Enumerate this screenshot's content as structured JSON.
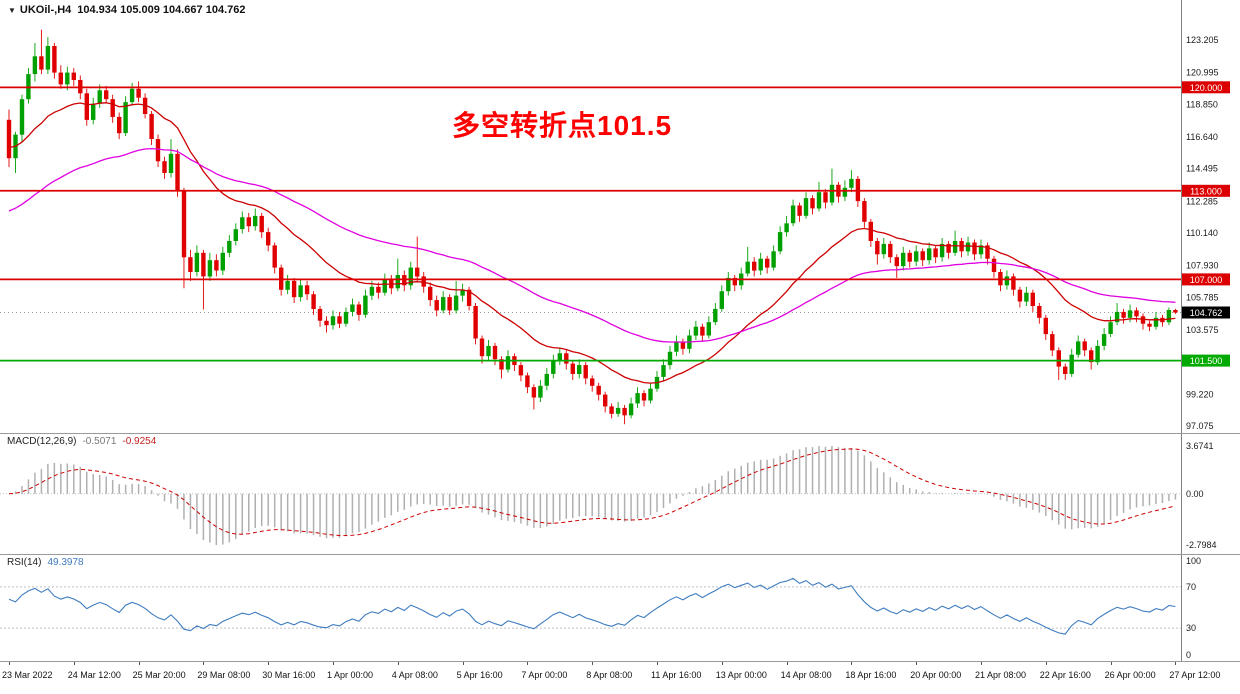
{
  "header": {
    "dropdown_icon": "▼",
    "symbol": "UKOil-,H4",
    "ohlc": "104.934 105.009 104.667 104.762"
  },
  "annotation": {
    "text": "多空转折点101.5",
    "color": "#ff0000"
  },
  "colors": {
    "bull": "#00a000",
    "bear": "#e00000",
    "ma_fast": "#cc0000",
    "ma_slow": "#e000e0",
    "hline_red": "#dd0000",
    "hline_green": "#00aa00",
    "macd_hist": "#b0b0b0",
    "macd_signal": "#cc0000",
    "rsi_line": "#3f7cbf",
    "axis_text": "#1a1a1a",
    "badge_current_bg": "#000000",
    "grid_dotted": "#c0c0c0",
    "current_line": "#999999",
    "separator": "#808080"
  },
  "chart_data": {
    "type": "candlestick",
    "symbol": "UKOil-",
    "timeframe": "H4",
    "ohlc_current": {
      "open": 104.934,
      "high": 105.009,
      "low": 104.667,
      "close": 104.762
    },
    "y_axis_labels": [
      "123.205",
      "120.995",
      "118.850",
      "116.640",
      "114.495",
      "112.285",
      "110.140",
      "107.930",
      "105.785",
      "103.575",
      "99.220",
      "97.075"
    ],
    "x_labels": [
      "23 Mar 2022",
      "24 Mar 12:00",
      "25 Mar 20:00",
      "29 Mar 08:00",
      "30 Mar 16:00",
      "1 Apr 00:00",
      "4 Apr 08:00",
      "5 Apr 16:00",
      "7 Apr 00:00",
      "8 Apr 08:00",
      "11 Apr 16:00",
      "13 Apr 00:00",
      "14 Apr 08:00",
      "18 Apr 16:00",
      "20 Apr 00:00",
      "21 Apr 08:00",
      "22 Apr 16:00",
      "26 Apr 00:00",
      "27 Apr 12:00"
    ],
    "hlines": [
      {
        "price": 120.0,
        "label": "120.000",
        "color": "#dd0000"
      },
      {
        "price": 113.0,
        "label": "113.000",
        "color": "#dd0000"
      },
      {
        "price": 107.0,
        "label": "107.000",
        "color": "#dd0000"
      },
      {
        "price": 101.5,
        "label": "101.500",
        "color": "#00aa00"
      }
    ],
    "current_price": {
      "value": 104.762,
      "label": "104.762"
    },
    "moving_averages": [
      {
        "period": 21,
        "color": "#cc0000",
        "seed": 116.0
      },
      {
        "period": 55,
        "color": "#e000e0",
        "seed": 111.5
      }
    ],
    "macd": {
      "label": "MACD(12,26,9)",
      "fast": 12,
      "slow": 26,
      "signal": 9,
      "value_main": "-0.5071",
      "value_signal": "-0.9254",
      "axis_labels": [
        "3.6741",
        "0.00",
        "-2.7984"
      ]
    },
    "rsi": {
      "label": "RSI(14)",
      "period": 14,
      "value": "49.3978",
      "levels": [
        70,
        30
      ],
      "axis_labels": [
        "100",
        "70",
        "30",
        "0"
      ]
    },
    "candles": [
      [
        117.8,
        118.5,
        114.6,
        115.2
      ],
      [
        115.2,
        117.0,
        114.2,
        116.8
      ],
      [
        116.8,
        119.5,
        116.3,
        119.2
      ],
      [
        119.2,
        121.3,
        118.9,
        120.9
      ],
      [
        120.9,
        123.0,
        120.4,
        122.1
      ],
      [
        122.1,
        123.9,
        120.9,
        121.2
      ],
      [
        121.2,
        123.4,
        120.9,
        122.8
      ],
      [
        122.8,
        123.0,
        120.6,
        121.0
      ],
      [
        121.0,
        121.5,
        119.9,
        120.2
      ],
      [
        120.2,
        121.4,
        119.8,
        121.0
      ],
      [
        121.0,
        121.3,
        120.1,
        120.5
      ],
      [
        120.5,
        120.8,
        119.2,
        119.6
      ],
      [
        119.6,
        119.9,
        117.4,
        117.8
      ],
      [
        117.8,
        119.3,
        117.5,
        118.9
      ],
      [
        118.9,
        120.2,
        118.6,
        119.8
      ],
      [
        119.8,
        120.1,
        118.9,
        119.2
      ],
      [
        119.2,
        119.5,
        117.6,
        118.0
      ],
      [
        118.0,
        118.3,
        116.5,
        116.9
      ],
      [
        116.9,
        119.4,
        116.7,
        119.0
      ],
      [
        119.0,
        120.3,
        118.8,
        119.9
      ],
      [
        119.9,
        120.4,
        119.0,
        119.3
      ],
      [
        119.3,
        119.6,
        117.9,
        118.2
      ],
      [
        118.2,
        118.4,
        116.1,
        116.5
      ],
      [
        116.5,
        116.8,
        114.6,
        115.0
      ],
      [
        115.0,
        115.3,
        113.8,
        114.2
      ],
      [
        114.2,
        116.5,
        113.9,
        115.5
      ],
      [
        115.5,
        115.8,
        112.6,
        113.0
      ],
      [
        113.0,
        113.2,
        106.4,
        108.5
      ],
      [
        108.5,
        109.0,
        106.9,
        107.5
      ],
      [
        107.5,
        109.3,
        107.2,
        108.8
      ],
      [
        108.8,
        109.0,
        104.96,
        107.2
      ],
      [
        107.2,
        108.8,
        106.9,
        108.3
      ],
      [
        108.3,
        108.7,
        107.2,
        107.6
      ],
      [
        107.6,
        109.2,
        107.3,
        108.8
      ],
      [
        108.8,
        110.0,
        108.5,
        109.6
      ],
      [
        109.6,
        110.8,
        109.3,
        110.4
      ],
      [
        110.4,
        111.6,
        110.1,
        111.2
      ],
      [
        111.2,
        111.5,
        110.2,
        110.6
      ],
      [
        110.6,
        111.8,
        110.3,
        111.3
      ],
      [
        111.3,
        111.5,
        109.8,
        110.2
      ],
      [
        110.2,
        110.5,
        108.9,
        109.3
      ],
      [
        109.3,
        109.5,
        107.4,
        107.8
      ],
      [
        107.8,
        108.0,
        105.9,
        106.3
      ],
      [
        106.3,
        107.3,
        106.0,
        106.9
      ],
      [
        106.9,
        107.1,
        105.4,
        105.8
      ],
      [
        105.8,
        107.0,
        105.5,
        106.6
      ],
      [
        106.6,
        106.9,
        105.6,
        106.0
      ],
      [
        106.0,
        106.2,
        104.6,
        105.0
      ],
      [
        105.0,
        105.2,
        103.8,
        104.2
      ],
      [
        104.2,
        104.5,
        103.4,
        103.9
      ],
      [
        103.9,
        104.9,
        103.6,
        104.5
      ],
      [
        104.5,
        104.8,
        103.7,
        104.0
      ],
      [
        104.0,
        105.1,
        103.8,
        104.8
      ],
      [
        104.8,
        105.7,
        104.5,
        105.3
      ],
      [
        105.3,
        105.5,
        104.2,
        104.6
      ],
      [
        104.6,
        106.3,
        104.4,
        105.9
      ],
      [
        105.9,
        106.9,
        105.6,
        106.5
      ],
      [
        106.5,
        106.8,
        105.7,
        106.1
      ],
      [
        106.1,
        107.4,
        105.9,
        107.0
      ],
      [
        107.0,
        107.3,
        106.0,
        106.4
      ],
      [
        106.4,
        108.4,
        106.2,
        107.3
      ],
      [
        107.3,
        107.6,
        106.2,
        106.6
      ],
      [
        106.6,
        108.2,
        106.3,
        107.8
      ],
      [
        107.8,
        109.9,
        106.9,
        107.2
      ],
      [
        107.2,
        107.5,
        106.1,
        106.5
      ],
      [
        106.5,
        106.8,
        105.2,
        105.6
      ],
      [
        105.6,
        105.9,
        104.5,
        104.9
      ],
      [
        104.9,
        106.2,
        104.7,
        105.8
      ],
      [
        105.8,
        106.0,
        104.6,
        104.9
      ],
      [
        104.9,
        106.9,
        104.7,
        105.9
      ],
      [
        105.9,
        106.7,
        105.5,
        106.3
      ],
      [
        106.3,
        106.5,
        104.9,
        105.2
      ],
      [
        105.2,
        105.4,
        102.6,
        103.0
      ],
      [
        103.0,
        103.2,
        101.3,
        101.8
      ],
      [
        101.8,
        102.9,
        101.5,
        102.5
      ],
      [
        102.5,
        102.7,
        101.2,
        101.6
      ],
      [
        101.6,
        101.8,
        100.3,
        100.9
      ],
      [
        100.9,
        102.2,
        100.7,
        101.8
      ],
      [
        101.8,
        102.0,
        100.8,
        101.2
      ],
      [
        101.2,
        101.4,
        100.1,
        100.5
      ],
      [
        100.5,
        100.7,
        99.3,
        99.7
      ],
      [
        99.7,
        99.9,
        98.2,
        99.0
      ],
      [
        99.0,
        100.2,
        98.7,
        99.8
      ],
      [
        99.8,
        101.0,
        99.5,
        100.6
      ],
      [
        100.6,
        101.9,
        100.3,
        101.5
      ],
      [
        101.5,
        102.4,
        101.2,
        102.0
      ],
      [
        102.0,
        102.2,
        100.9,
        101.3
      ],
      [
        101.3,
        101.5,
        100.2,
        100.6
      ],
      [
        100.6,
        101.6,
        100.3,
        101.2
      ],
      [
        101.2,
        101.4,
        99.9,
        100.3
      ],
      [
        100.3,
        100.5,
        99.4,
        99.8
      ],
      [
        99.8,
        100.0,
        98.8,
        99.2
      ],
      [
        99.2,
        99.4,
        98.0,
        98.4
      ],
      [
        98.4,
        98.6,
        97.6,
        97.9
      ],
      [
        97.9,
        98.7,
        97.7,
        98.3
      ],
      [
        98.3,
        98.5,
        97.2,
        97.8
      ],
      [
        97.8,
        99.0,
        97.6,
        98.6
      ],
      [
        98.6,
        99.7,
        98.3,
        99.3
      ],
      [
        99.3,
        99.5,
        98.4,
        98.8
      ],
      [
        98.8,
        100.0,
        98.6,
        99.6
      ],
      [
        99.6,
        100.8,
        99.4,
        100.4
      ],
      [
        100.4,
        101.6,
        100.1,
        101.2
      ],
      [
        101.2,
        102.5,
        100.9,
        102.1
      ],
      [
        102.1,
        103.2,
        101.8,
        102.8
      ],
      [
        102.8,
        103.0,
        101.9,
        102.3
      ],
      [
        102.3,
        103.6,
        102.0,
        103.2
      ],
      [
        103.2,
        104.2,
        102.9,
        103.8
      ],
      [
        103.8,
        104.0,
        102.8,
        103.2
      ],
      [
        103.2,
        104.5,
        103.0,
        104.1
      ],
      [
        104.1,
        105.4,
        103.9,
        105.0
      ],
      [
        105.0,
        106.6,
        104.8,
        106.2
      ],
      [
        106.2,
        107.5,
        105.9,
        107.1
      ],
      [
        107.1,
        107.3,
        106.2,
        106.6
      ],
      [
        106.6,
        107.8,
        106.3,
        107.4
      ],
      [
        107.4,
        109.2,
        107.2,
        108.2
      ],
      [
        108.2,
        108.5,
        107.2,
        107.6
      ],
      [
        107.6,
        108.8,
        107.3,
        108.4
      ],
      [
        108.4,
        108.6,
        107.4,
        107.8
      ],
      [
        107.8,
        109.3,
        107.6,
        108.9
      ],
      [
        108.9,
        110.6,
        108.7,
        110.2
      ],
      [
        110.2,
        111.3,
        109.9,
        110.8
      ],
      [
        110.8,
        112.4,
        110.6,
        112.0
      ],
      [
        112.0,
        112.2,
        110.9,
        111.3
      ],
      [
        111.3,
        112.9,
        111.1,
        112.5
      ],
      [
        112.5,
        112.7,
        111.4,
        111.8
      ],
      [
        111.8,
        113.6,
        111.6,
        112.9
      ],
      [
        112.9,
        113.1,
        111.8,
        112.2
      ],
      [
        112.2,
        114.5,
        112.0,
        113.4
      ],
      [
        113.4,
        113.6,
        112.2,
        112.6
      ],
      [
        112.6,
        113.7,
        112.3,
        113.2
      ],
      [
        113.2,
        114.4,
        112.9,
        113.8
      ],
      [
        113.8,
        114.0,
        111.9,
        112.3
      ],
      [
        112.3,
        112.5,
        110.5,
        110.9
      ],
      [
        110.9,
        111.1,
        109.2,
        109.6
      ],
      [
        109.6,
        109.8,
        108.0,
        108.7
      ],
      [
        108.7,
        109.8,
        108.4,
        109.4
      ],
      [
        109.4,
        109.6,
        108.1,
        108.5
      ],
      [
        108.5,
        108.7,
        107.1,
        107.9
      ],
      [
        107.9,
        109.2,
        107.6,
        108.8
      ],
      [
        108.8,
        109.0,
        107.8,
        108.2
      ],
      [
        108.2,
        109.3,
        107.9,
        108.9
      ],
      [
        108.9,
        109.1,
        107.9,
        108.3
      ],
      [
        108.3,
        109.5,
        108.0,
        109.1
      ],
      [
        109.1,
        109.3,
        108.1,
        108.5
      ],
      [
        108.5,
        109.8,
        108.2,
        109.4
      ],
      [
        109.4,
        109.6,
        108.4,
        108.8
      ],
      [
        108.8,
        110.3,
        108.6,
        109.6
      ],
      [
        109.6,
        109.8,
        108.5,
        108.9
      ],
      [
        108.9,
        109.9,
        108.6,
        109.5
      ],
      [
        109.5,
        109.7,
        108.3,
        108.7
      ],
      [
        108.7,
        109.7,
        108.4,
        109.3
      ],
      [
        109.3,
        109.5,
        108.0,
        108.4
      ],
      [
        108.4,
        108.6,
        107.1,
        107.5
      ],
      [
        107.5,
        107.7,
        106.2,
        106.6
      ],
      [
        106.6,
        107.6,
        106.3,
        107.2
      ],
      [
        107.2,
        107.4,
        105.9,
        106.3
      ],
      [
        106.3,
        106.5,
        105.1,
        105.5
      ],
      [
        105.5,
        106.5,
        105.2,
        106.1
      ],
      [
        106.1,
        106.3,
        104.8,
        105.2
      ],
      [
        105.2,
        105.4,
        104.0,
        104.4
      ],
      [
        104.4,
        104.6,
        102.9,
        103.3
      ],
      [
        103.3,
        103.5,
        101.8,
        102.2
      ],
      [
        102.2,
        102.4,
        100.2,
        101.1
      ],
      [
        101.1,
        101.3,
        100.2,
        100.6
      ],
      [
        100.6,
        102.3,
        100.4,
        101.9
      ],
      [
        101.9,
        103.2,
        101.7,
        102.8
      ],
      [
        102.8,
        103.0,
        101.8,
        102.2
      ],
      [
        102.2,
        102.4,
        100.9,
        101.4
      ],
      [
        101.4,
        102.9,
        101.2,
        102.5
      ],
      [
        102.5,
        103.7,
        102.2,
        103.3
      ],
      [
        103.3,
        104.5,
        103.1,
        104.1
      ],
      [
        104.1,
        105.4,
        103.9,
        104.8
      ],
      [
        104.8,
        105.0,
        104.0,
        104.4
      ],
      [
        104.4,
        105.3,
        104.1,
        104.9
      ],
      [
        104.9,
        105.1,
        104.1,
        104.5
      ],
      [
        104.5,
        104.7,
        103.6,
        104.0
      ],
      [
        104.0,
        104.2,
        103.5,
        103.8
      ],
      [
        103.8,
        104.8,
        103.6,
        104.4
      ],
      [
        104.4,
        104.6,
        103.8,
        104.1
      ],
      [
        104.1,
        105.1,
        103.9,
        104.93
      ],
      [
        104.93,
        105.009,
        104.667,
        104.762
      ]
    ]
  }
}
